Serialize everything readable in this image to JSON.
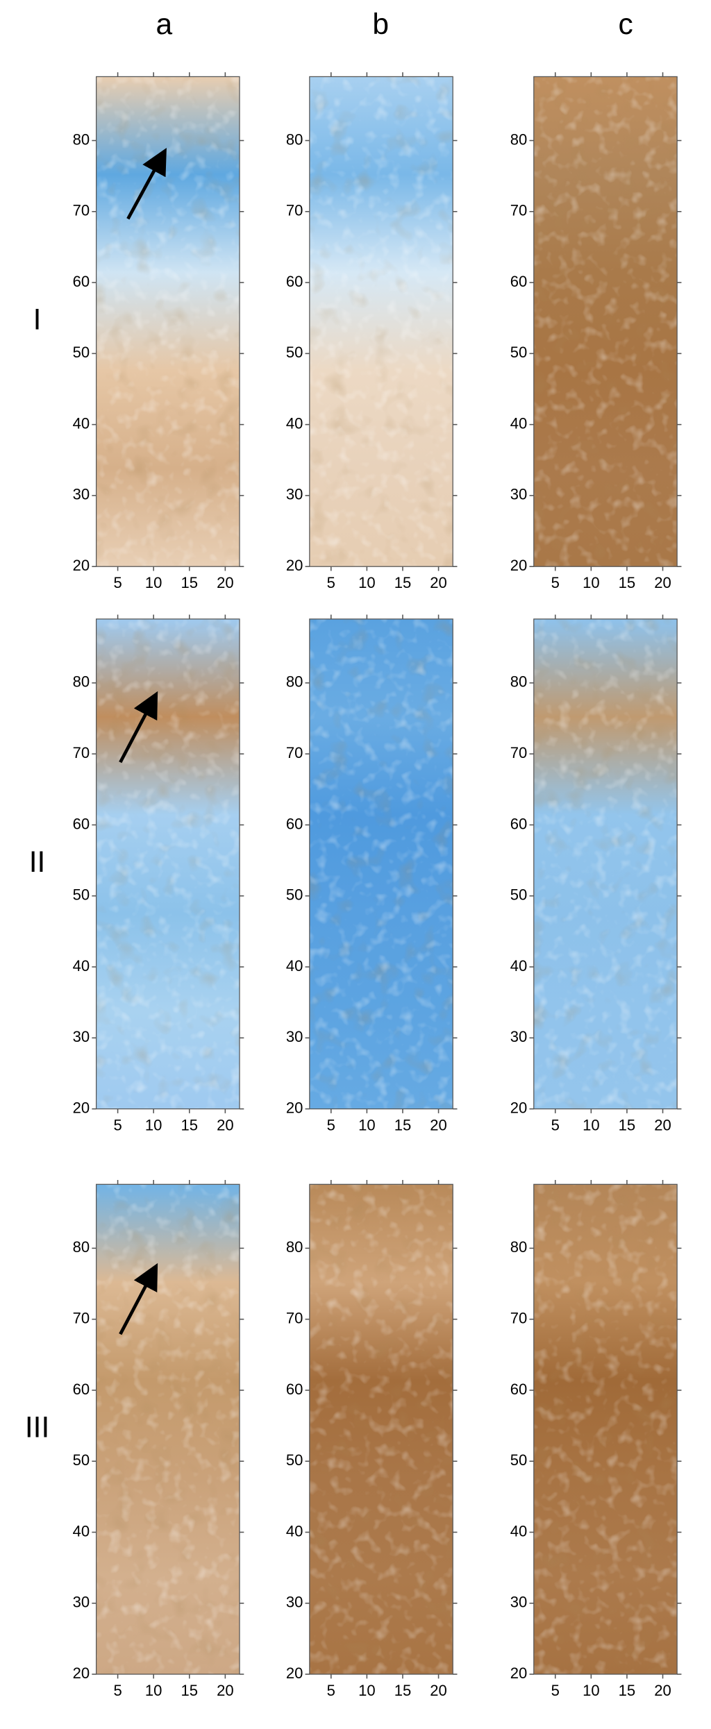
{
  "column_labels": [
    "a",
    "b",
    "c"
  ],
  "row_labels": [
    "I",
    "II",
    "III"
  ],
  "chart_data": [
    {
      "type": "heatmap",
      "xlim": [
        2,
        22
      ],
      "ylim": [
        20,
        89
      ],
      "xticks": [
        5,
        10,
        15,
        20
      ],
      "yticks": [
        20,
        30,
        40,
        50,
        60,
        70,
        80
      ],
      "colors": [
        "#e8cdb0",
        "#5fa8e0",
        "#cfe4f3",
        "#e6c7a6",
        "#d6b08a",
        "#e8cfb5"
      ]
    },
    {
      "type": "heatmap",
      "xlim": [
        2,
        22
      ],
      "ylim": [
        20,
        89
      ],
      "xticks": [
        5,
        10,
        15,
        20
      ],
      "yticks": [
        20,
        30,
        40,
        50,
        60,
        70,
        80
      ],
      "colors": [
        "#a8d0f0",
        "#7ab8e8",
        "#d6e8f5",
        "#ecd9c4",
        "#e8d2bb",
        "#e6cdb2"
      ]
    },
    {
      "type": "heatmap",
      "xlim": [
        2,
        22
      ],
      "ylim": [
        20,
        89
      ],
      "xticks": [
        5,
        10,
        15,
        20
      ],
      "yticks": [
        20,
        30,
        40,
        50,
        60,
        70,
        80
      ],
      "colors": [
        "#c09060",
        "#b0865a",
        "#a97a4a",
        "#a87544",
        "#ab7a4c",
        "#a97848"
      ]
    },
    {
      "type": "heatmap",
      "xlim": [
        2,
        22
      ],
      "ylim": [
        20,
        89
      ],
      "xticks": [
        5,
        10,
        15,
        20
      ],
      "yticks": [
        20,
        30,
        40,
        50,
        60,
        70,
        80
      ],
      "colors": [
        "#9fcaf0",
        "#c08e5e",
        "#a6cff0",
        "#8cc2ea",
        "#a9d2f0",
        "#9fcaf0"
      ]
    },
    {
      "type": "heatmap",
      "xlim": [
        2,
        22
      ],
      "ylim": [
        20,
        89
      ],
      "xticks": [
        5,
        10,
        15,
        20
      ],
      "yticks": [
        20,
        30,
        40,
        50,
        60,
        70,
        80
      ],
      "colors": [
        "#5aa2e0",
        "#6aace3",
        "#4f9ade",
        "#58a0e0",
        "#5da4e1",
        "#66aae3"
      ]
    },
    {
      "type": "heatmap",
      "xlim": [
        2,
        22
      ],
      "ylim": [
        20,
        89
      ],
      "xticks": [
        5,
        10,
        15,
        20
      ],
      "yticks": [
        20,
        30,
        40,
        50,
        60,
        70,
        80
      ],
      "colors": [
        "#8ec2ec",
        "#c09a70",
        "#93c5ec",
        "#8dc1ea",
        "#92c4ec",
        "#94c5ec"
      ]
    },
    {
      "type": "heatmap",
      "xlim": [
        2,
        22
      ],
      "ylim": [
        20,
        89
      ],
      "xticks": [
        5,
        10,
        15,
        20
      ],
      "yticks": [
        20,
        30,
        40,
        50,
        60,
        70,
        80
      ],
      "colors": [
        "#72b4e6",
        "#dcb994",
        "#c49a6c",
        "#caa27a",
        "#d3b08e",
        "#cda885"
      ]
    },
    {
      "type": "heatmap",
      "xlim": [
        2,
        22
      ],
      "ylim": [
        20,
        89
      ],
      "xticks": [
        5,
        10,
        15,
        20
      ],
      "yticks": [
        20,
        30,
        40,
        50,
        60,
        70,
        80
      ],
      "colors": [
        "#b98a5a",
        "#cfa47a",
        "#a36d3c",
        "#a97648",
        "#ac7a4c",
        "#a87444"
      ]
    },
    {
      "type": "heatmap",
      "xlim": [
        2,
        22
      ],
      "ylim": [
        20,
        89
      ],
      "xticks": [
        5,
        10,
        15,
        20
      ],
      "yticks": [
        20,
        30,
        40,
        50,
        60,
        70,
        80
      ],
      "colors": [
        "#b48658",
        "#c09060",
        "#a06a38",
        "#a87444",
        "#ac7a4c",
        "#a67242"
      ]
    }
  ]
}
